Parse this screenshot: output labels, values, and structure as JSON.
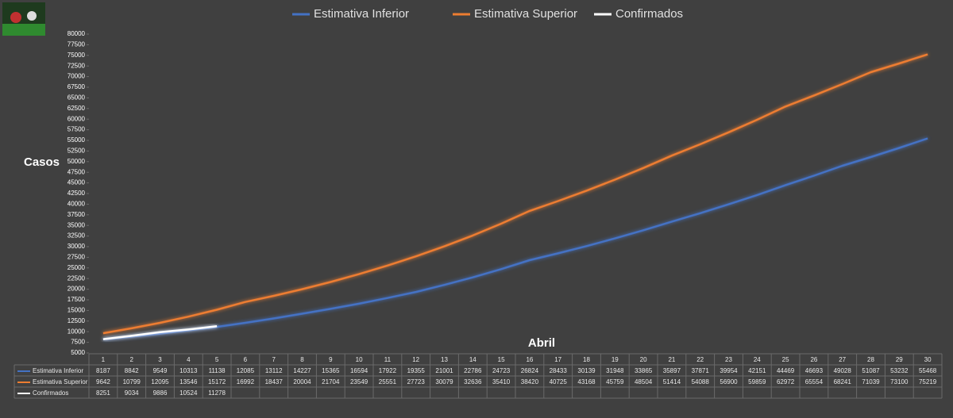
{
  "chart_data": {
    "type": "line",
    "y_label": "Casos",
    "x_label": "Abril",
    "categories": [
      "1",
      "2",
      "3",
      "4",
      "5",
      "6",
      "7",
      "8",
      "9",
      "10",
      "11",
      "12",
      "13",
      "14",
      "15",
      "16",
      "17",
      "18",
      "19",
      "20",
      "21",
      "22",
      "23",
      "24",
      "25",
      "26",
      "27",
      "28",
      "29",
      "30"
    ],
    "series": [
      {
        "name": "Estimativa Inferior",
        "color": "#4472c4",
        "values": [
          8187,
          8842,
          9549,
          10313,
          11138,
          12085,
          13112,
          14227,
          15365,
          16594,
          17922,
          19355,
          21001,
          22786,
          24723,
          26824,
          28433,
          30139,
          31948,
          33865,
          35897,
          37871,
          39954,
          42151,
          44469,
          46693,
          49028,
          51087,
          53232,
          55468
        ]
      },
      {
        "name": "Estimativa Superior",
        "color": "#ed7d31",
        "values": [
          9642,
          10799,
          12095,
          13546,
          15172,
          16992,
          18437,
          20004,
          21704,
          23549,
          25551,
          27723,
          30079,
          32636,
          35410,
          38420,
          40725,
          43168,
          45759,
          48504,
          51414,
          54088,
          56900,
          59859,
          62972,
          65554,
          68241,
          71039,
          73100,
          75219
        ]
      },
      {
        "name": "Confirmados",
        "color": "#ffffff",
        "values": [
          8251,
          9034,
          9886,
          10524,
          11278,
          null,
          null,
          null,
          null,
          null,
          null,
          null,
          null,
          null,
          null,
          null,
          null,
          null,
          null,
          null,
          null,
          null,
          null,
          null,
          null,
          null,
          null,
          null,
          null,
          null
        ]
      }
    ],
    "ylim": [
      5000,
      80000
    ],
    "yticks": [
      5000,
      7500,
      10000,
      12500,
      15000,
      17500,
      20000,
      22500,
      25000,
      27500,
      30000,
      32500,
      35000,
      37500,
      40000,
      42500,
      45000,
      47500,
      50000,
      52500,
      55000,
      57500,
      60000,
      62500,
      65000,
      67500,
      70000,
      72500,
      75000,
      77500,
      80000
    ],
    "grid": false,
    "legend": "top"
  }
}
